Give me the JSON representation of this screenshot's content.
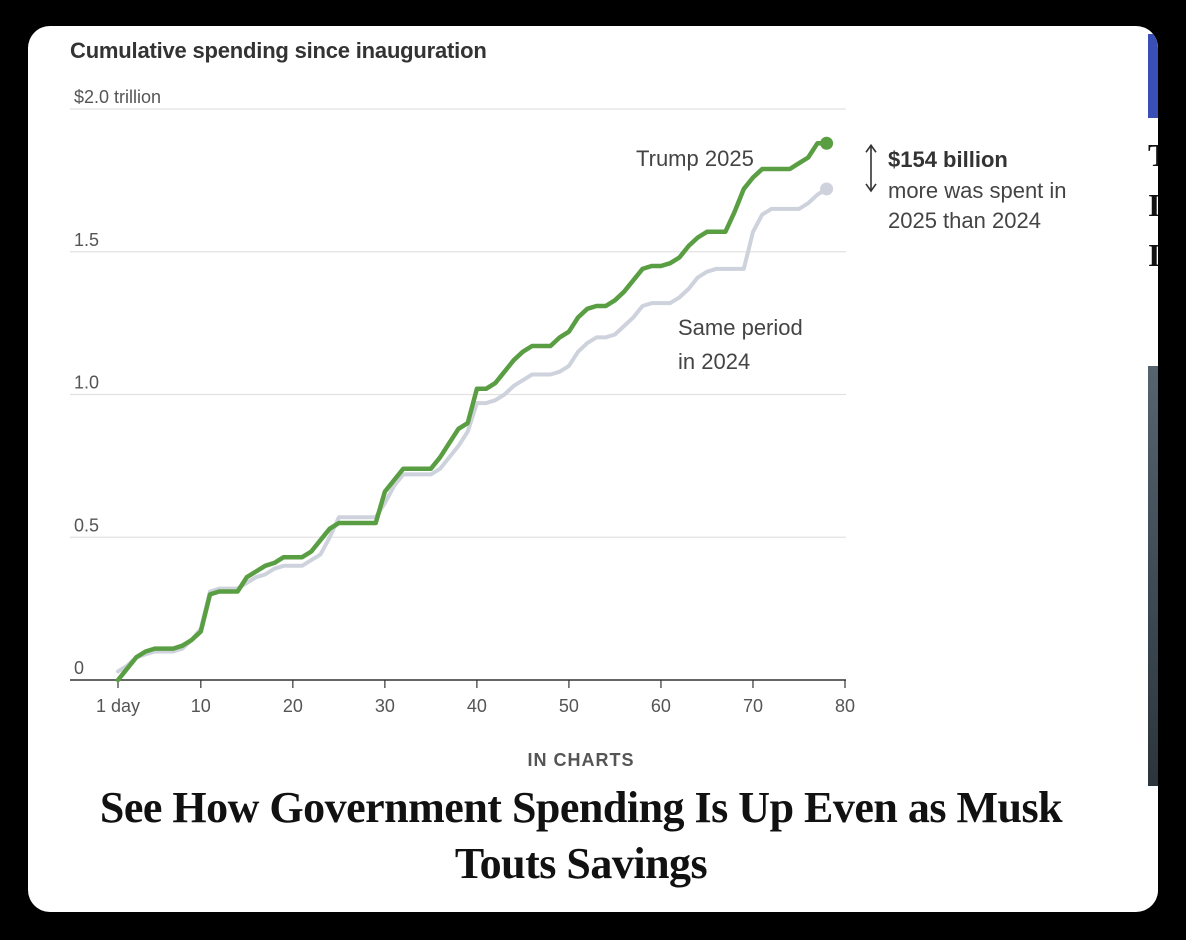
{
  "chart_data": {
    "type": "line",
    "title": "Cumulative spending since inauguration",
    "ylabel": "",
    "xlabel": "",
    "ylim": [
      0,
      2.0
    ],
    "xlim": [
      1,
      80
    ],
    "y_ticks": [
      {
        "value": 0,
        "label": "0"
      },
      {
        "value": 0.5,
        "label": "0.5"
      },
      {
        "value": 1.0,
        "label": "1.0"
      },
      {
        "value": 1.5,
        "label": "1.5"
      },
      {
        "value": 2.0,
        "label": "$2.0 trillion"
      }
    ],
    "x_ticks": [
      {
        "value": 1,
        "label": "1 day"
      },
      {
        "value": 10,
        "label": "10"
      },
      {
        "value": 20,
        "label": "20"
      },
      {
        "value": 30,
        "label": "30"
      },
      {
        "value": 40,
        "label": "40"
      },
      {
        "value": 50,
        "label": "50"
      },
      {
        "value": 60,
        "label": "60"
      },
      {
        "value": 70,
        "label": "70"
      },
      {
        "value": 80,
        "label": "80"
      }
    ],
    "grid": true,
    "series": [
      {
        "name": "Same period in 2024",
        "label": [
          "Same period",
          "in 2024"
        ],
        "color": "#cdd2dc",
        "points": [
          [
            1,
            0.03
          ],
          [
            2,
            0.05
          ],
          [
            3,
            0.08
          ],
          [
            4,
            0.09
          ],
          [
            5,
            0.1
          ],
          [
            6,
            0.1
          ],
          [
            7,
            0.1
          ],
          [
            8,
            0.11
          ],
          [
            9,
            0.14
          ],
          [
            10,
            0.18
          ],
          [
            11,
            0.31
          ],
          [
            12,
            0.32
          ],
          [
            13,
            0.32
          ],
          [
            14,
            0.32
          ],
          [
            15,
            0.34
          ],
          [
            16,
            0.36
          ],
          [
            17,
            0.37
          ],
          [
            18,
            0.39
          ],
          [
            19,
            0.4
          ],
          [
            20,
            0.4
          ],
          [
            21,
            0.4
          ],
          [
            22,
            0.42
          ],
          [
            23,
            0.44
          ],
          [
            24,
            0.5
          ],
          [
            25,
            0.57
          ],
          [
            26,
            0.57
          ],
          [
            27,
            0.57
          ],
          [
            28,
            0.57
          ],
          [
            29,
            0.57
          ],
          [
            30,
            0.62
          ],
          [
            31,
            0.68
          ],
          [
            32,
            0.72
          ],
          [
            33,
            0.72
          ],
          [
            34,
            0.72
          ],
          [
            35,
            0.72
          ],
          [
            36,
            0.74
          ],
          [
            37,
            0.78
          ],
          [
            38,
            0.82
          ],
          [
            39,
            0.87
          ],
          [
            40,
            0.97
          ],
          [
            41,
            0.97
          ],
          [
            42,
            0.98
          ],
          [
            43,
            1.0
          ],
          [
            44,
            1.03
          ],
          [
            45,
            1.05
          ],
          [
            46,
            1.07
          ],
          [
            47,
            1.07
          ],
          [
            48,
            1.07
          ],
          [
            49,
            1.08
          ],
          [
            50,
            1.1
          ],
          [
            51,
            1.15
          ],
          [
            52,
            1.18
          ],
          [
            53,
            1.2
          ],
          [
            54,
            1.2
          ],
          [
            55,
            1.21
          ],
          [
            56,
            1.24
          ],
          [
            57,
            1.27
          ],
          [
            58,
            1.31
          ],
          [
            59,
            1.32
          ],
          [
            60,
            1.32
          ],
          [
            61,
            1.32
          ],
          [
            62,
            1.34
          ],
          [
            63,
            1.37
          ],
          [
            64,
            1.41
          ],
          [
            65,
            1.43
          ],
          [
            66,
            1.44
          ],
          [
            67,
            1.44
          ],
          [
            68,
            1.44
          ],
          [
            69,
            1.44
          ],
          [
            70,
            1.57
          ],
          [
            71,
            1.63
          ],
          [
            72,
            1.65
          ],
          [
            73,
            1.65
          ],
          [
            74,
            1.65
          ],
          [
            75,
            1.65
          ],
          [
            76,
            1.67
          ],
          [
            77,
            1.7
          ],
          [
            78,
            1.72
          ]
        ]
      },
      {
        "name": "Trump 2025",
        "label": [
          "Trump 2025"
        ],
        "color": "#5a9e43",
        "points": [
          [
            1,
            0.0
          ],
          [
            2,
            0.04
          ],
          [
            3,
            0.08
          ],
          [
            4,
            0.1
          ],
          [
            5,
            0.11
          ],
          [
            6,
            0.11
          ],
          [
            7,
            0.11
          ],
          [
            8,
            0.12
          ],
          [
            9,
            0.14
          ],
          [
            10,
            0.17
          ],
          [
            11,
            0.3
          ],
          [
            12,
            0.31
          ],
          [
            13,
            0.31
          ],
          [
            14,
            0.31
          ],
          [
            15,
            0.36
          ],
          [
            16,
            0.38
          ],
          [
            17,
            0.4
          ],
          [
            18,
            0.41
          ],
          [
            19,
            0.43
          ],
          [
            20,
            0.43
          ],
          [
            21,
            0.43
          ],
          [
            22,
            0.45
          ],
          [
            23,
            0.49
          ],
          [
            24,
            0.53
          ],
          [
            25,
            0.55
          ],
          [
            26,
            0.55
          ],
          [
            27,
            0.55
          ],
          [
            28,
            0.55
          ],
          [
            29,
            0.55
          ],
          [
            30,
            0.66
          ],
          [
            31,
            0.7
          ],
          [
            32,
            0.74
          ],
          [
            33,
            0.74
          ],
          [
            34,
            0.74
          ],
          [
            35,
            0.74
          ],
          [
            36,
            0.78
          ],
          [
            37,
            0.83
          ],
          [
            38,
            0.88
          ],
          [
            39,
            0.9
          ],
          [
            40,
            1.02
          ],
          [
            41,
            1.02
          ],
          [
            42,
            1.04
          ],
          [
            43,
            1.08
          ],
          [
            44,
            1.12
          ],
          [
            45,
            1.15
          ],
          [
            46,
            1.17
          ],
          [
            47,
            1.17
          ],
          [
            48,
            1.17
          ],
          [
            49,
            1.2
          ],
          [
            50,
            1.22
          ],
          [
            51,
            1.27
          ],
          [
            52,
            1.3
          ],
          [
            53,
            1.31
          ],
          [
            54,
            1.31
          ],
          [
            55,
            1.33
          ],
          [
            56,
            1.36
          ],
          [
            57,
            1.4
          ],
          [
            58,
            1.44
          ],
          [
            59,
            1.45
          ],
          [
            60,
            1.45
          ],
          [
            61,
            1.46
          ],
          [
            62,
            1.48
          ],
          [
            63,
            1.52
          ],
          [
            64,
            1.55
          ],
          [
            65,
            1.57
          ],
          [
            66,
            1.57
          ],
          [
            67,
            1.57
          ],
          [
            68,
            1.64
          ],
          [
            69,
            1.72
          ],
          [
            70,
            1.76
          ],
          [
            71,
            1.79
          ],
          [
            72,
            1.79
          ],
          [
            73,
            1.79
          ],
          [
            74,
            1.79
          ],
          [
            75,
            1.81
          ],
          [
            76,
            1.83
          ],
          [
            77,
            1.88
          ],
          [
            78,
            1.88
          ]
        ]
      }
    ],
    "annotation": {
      "amount": "$154 billion",
      "lines": [
        "more was spent in",
        "2025 than 2024"
      ]
    }
  },
  "article": {
    "kicker": "IN CHARTS",
    "headline": "See How Government Spending Is Up Even as Musk Touts Savings"
  },
  "edge_letters": [
    "T",
    "I",
    "I"
  ]
}
